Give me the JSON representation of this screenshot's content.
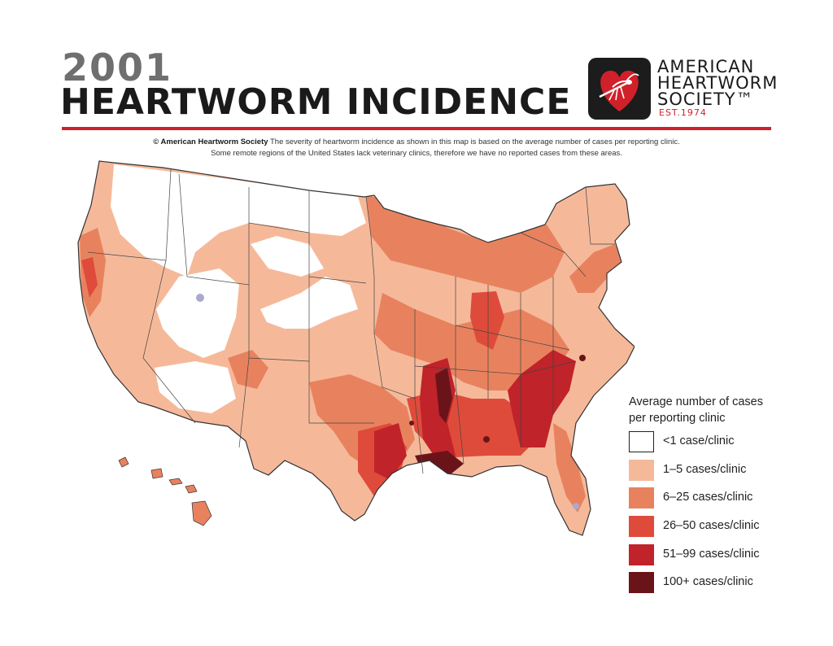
{
  "header": {
    "year": "2001",
    "title": "HEARTWORM INCIDENCE"
  },
  "logo": {
    "line1": "AMERICAN",
    "line2": "HEARTWORM",
    "line3": "SOCIETY™",
    "est": "EST.1974"
  },
  "caption": {
    "credit": "© American Heartworm Society",
    "line1": "The severity of heartworm incidence as shown in this map is based on the average number of cases per reporting clinic.",
    "line2": "Some remote regions of the United States lack veterinary clinics, therefore we have no reported cases from these areas."
  },
  "legend": {
    "title_line1": "Average number of cases",
    "title_line2": "per reporting clinic",
    "items": [
      {
        "label": "<1 case/clinic",
        "color": "#ffffff"
      },
      {
        "label": "1–5 cases/clinic",
        "color": "#f5b99a"
      },
      {
        "label": "6–25 cases/clinic",
        "color": "#e8825e"
      },
      {
        "label": "26–50 cases/clinic",
        "color": "#df4b3b"
      },
      {
        "label": "51–99 cases/clinic",
        "color": "#c0232a"
      },
      {
        "label": "100+ cases/clinic",
        "color": "#6a1419"
      }
    ]
  },
  "colors": {
    "brand_red": "#d0202a",
    "border": "#333333",
    "no_data": "#a9a9d0"
  }
}
